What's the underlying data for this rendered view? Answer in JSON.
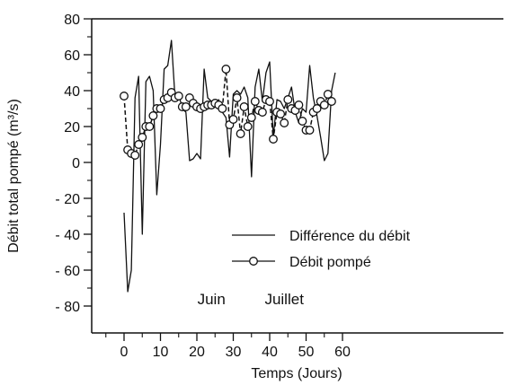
{
  "chart_data": {
    "type": "line",
    "xlabel": "Temps (Jours)",
    "ylabel": "Débit total pompé (m³/s)",
    "xlim": [
      -5,
      62
    ],
    "ylim": [
      -90,
      80
    ],
    "xticks": [
      0,
      10,
      20,
      30,
      40,
      50,
      60
    ],
    "yticks": [
      80,
      60,
      40,
      20,
      0,
      -20,
      -40,
      -60,
      -80
    ],
    "ytick_labels": [
      "80",
      "60",
      "40",
      "20",
      "0",
      "- 20",
      "- 40",
      "- 60",
      "- 80"
    ],
    "grid": false,
    "legend_position": "center-right",
    "annotations": [
      {
        "text": "Juin",
        "x": 24,
        "y": -79
      },
      {
        "text": "Juillet",
        "x": 44,
        "y": -79
      }
    ],
    "series": [
      {
        "name": "Différence du débit",
        "style": "solid-line",
        "color": "#111111",
        "x": [
          0,
          1,
          2,
          3,
          4,
          5,
          6,
          7,
          8,
          9,
          10,
          11,
          12,
          13,
          14,
          15,
          16,
          17,
          18,
          19,
          20,
          21,
          22,
          23,
          24,
          25,
          26,
          27,
          28,
          29,
          30,
          31,
          32,
          33,
          34,
          35,
          36,
          37,
          38,
          39,
          40,
          41,
          42,
          43,
          44,
          45,
          46,
          47,
          48,
          49,
          50,
          51,
          52,
          53,
          54,
          55,
          56,
          57,
          58
        ],
        "values": [
          -28,
          -72,
          -60,
          36,
          48,
          -40,
          45,
          48,
          40,
          -18,
          10,
          52,
          54,
          68,
          36,
          38,
          30,
          28,
          1,
          2,
          5,
          2,
          52,
          36,
          34,
          32,
          35,
          28,
          25,
          3,
          38,
          40,
          38,
          42,
          36,
          -8,
          42,
          52,
          34,
          50,
          56,
          14,
          35,
          34,
          30,
          36,
          42,
          28,
          22,
          30,
          28,
          54,
          36,
          26,
          14,
          1,
          5,
          40,
          50
        ]
      },
      {
        "name": "Débit pompé",
        "style": "dashed-line-with-open-circles",
        "color": "#111111",
        "x": [
          0,
          1,
          2,
          3,
          4,
          5,
          6,
          7,
          8,
          9,
          10,
          11,
          12,
          13,
          14,
          15,
          16,
          17,
          18,
          19,
          20,
          21,
          22,
          23,
          24,
          25,
          26,
          27,
          28,
          29,
          30,
          31,
          32,
          33,
          34,
          35,
          36,
          37,
          38,
          39,
          40,
          41,
          42,
          43,
          44,
          45,
          46,
          47,
          48,
          49,
          50,
          51,
          52,
          53,
          54,
          55,
          56,
          57
        ],
        "values": [
          37,
          7,
          5,
          4,
          10,
          14,
          20,
          20,
          26,
          30,
          30,
          35,
          36,
          39,
          36,
          37,
          31,
          31,
          36,
          33,
          31,
          30,
          31,
          32,
          32,
          33,
          32,
          30,
          52,
          21,
          24,
          36,
          16,
          31,
          20,
          25,
          34,
          29,
          28,
          35,
          34,
          13,
          28,
          27,
          22,
          35,
          30,
          29,
          32,
          23,
          18,
          18,
          28,
          30,
          34,
          32,
          38,
          34
        ]
      }
    ]
  }
}
